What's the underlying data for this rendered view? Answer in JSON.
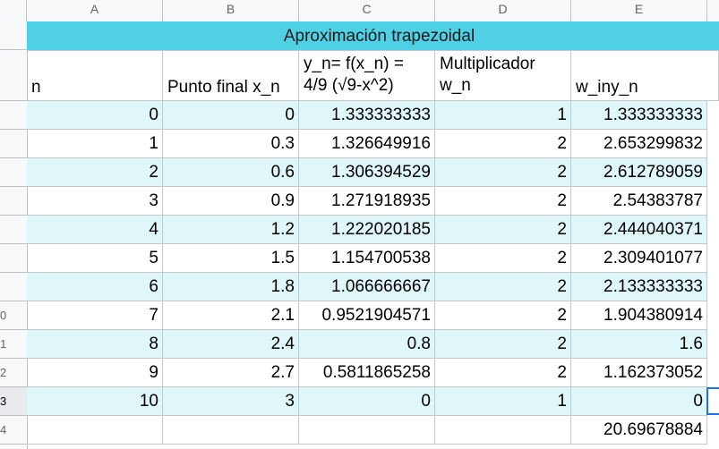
{
  "columns": [
    "A",
    "B",
    "C",
    "D",
    "E"
  ],
  "row_numbers": [
    "",
    "",
    "",
    "",
    "",
    "",
    "",
    "",
    "",
    "",
    "",
    "0",
    "1",
    "2",
    "3",
    "4"
  ],
  "title": "Aproximación trapezoidal",
  "headers": {
    "n": "n",
    "x": "Punto final x_n",
    "y_line1": "y_n= f(x_n) =",
    "y_line2": "4/9 (√9-x^2)",
    "w_line1": "Multiplicador",
    "w_line2": "w_n",
    "wy": "w_iny_n"
  },
  "rows": [
    {
      "n": "0",
      "x": "0",
      "y": "1.333333333",
      "w": "1",
      "wy": "1.333333333"
    },
    {
      "n": "1",
      "x": "0.3",
      "y": "1.326649916",
      "w": "2",
      "wy": "2.653299832"
    },
    {
      "n": "2",
      "x": "0.6",
      "y": "1.306394529",
      "w": "2",
      "wy": "2.612789059"
    },
    {
      "n": "3",
      "x": "0.9",
      "y": "1.271918935",
      "w": "2",
      "wy": "2.54383787"
    },
    {
      "n": "4",
      "x": "1.2",
      "y": "1.222020185",
      "w": "2",
      "wy": "2.444040371"
    },
    {
      "n": "5",
      "x": "1.5",
      "y": "1.154700538",
      "w": "2",
      "wy": "2.309401077"
    },
    {
      "n": "6",
      "x": "1.8",
      "y": "1.066666667",
      "w": "2",
      "wy": "2.133333333"
    },
    {
      "n": "7",
      "x": "2.1",
      "y": "0.9521904571",
      "w": "2",
      "wy": "1.904380914"
    },
    {
      "n": "8",
      "x": "2.4",
      "y": "0.8",
      "w": "2",
      "wy": "1.6"
    },
    {
      "n": "9",
      "x": "2.7",
      "y": "0.5811865258",
      "w": "2",
      "wy": "1.162373052"
    },
    {
      "n": "10",
      "x": "3",
      "y": "0",
      "w": "1",
      "wy": "0"
    }
  ],
  "total": "20.69678884",
  "colors": {
    "title_bg": "#4fd0e4",
    "band": "#e0f7fa",
    "selection": "#1a73e8"
  }
}
